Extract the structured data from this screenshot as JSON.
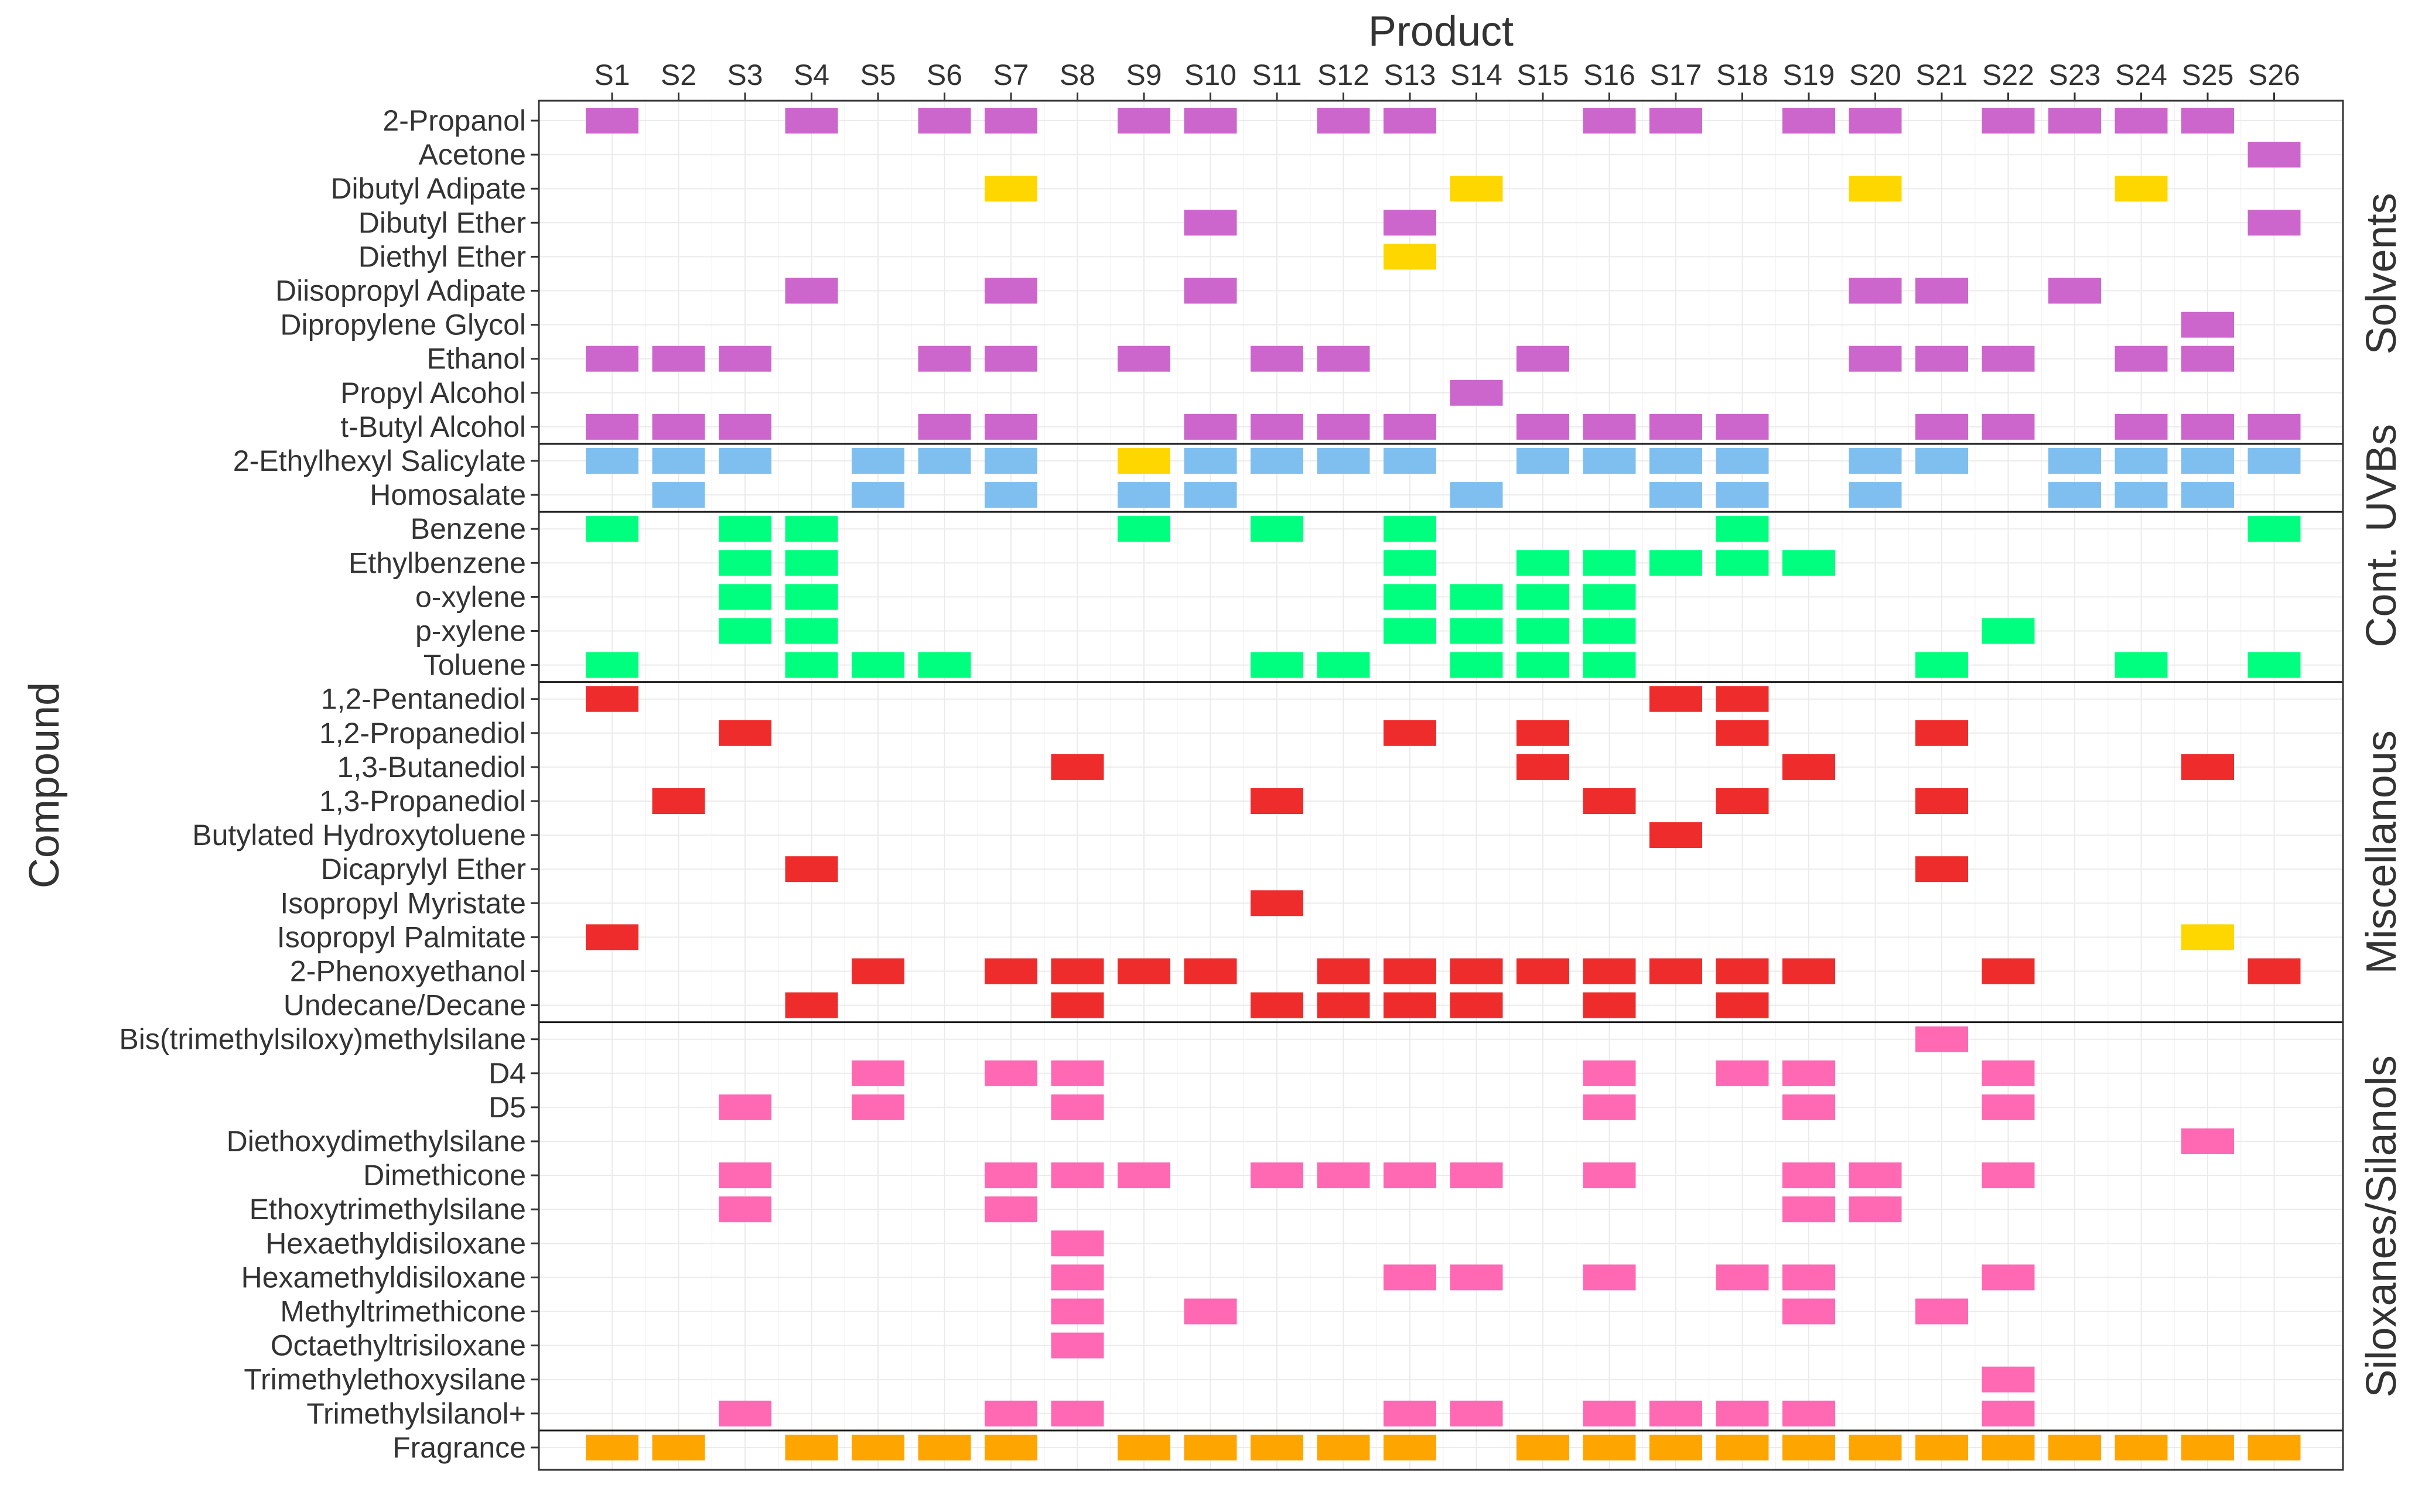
{
  "chart_data": {
    "type": "heatmap",
    "title": "",
    "xlabel": "Product",
    "ylabel": "Compound",
    "grid": true,
    "legend": "none",
    "products": [
      "S1",
      "S2",
      "S3",
      "S4",
      "S5",
      "S6",
      "S7",
      "S8",
      "S9",
      "S10",
      "S11",
      "S12",
      "S13",
      "S14",
      "S15",
      "S16",
      "S17",
      "S18",
      "S19",
      "S20",
      "S21",
      "S22",
      "S23",
      "S24",
      "S25",
      "S26"
    ],
    "compounds": [
      "2-Propanol",
      "Acetone",
      "Dibutyl Adipate",
      "Dibutyl Ether",
      "Diethyl Ether",
      "Diisopropyl Adipate",
      "Dipropylene Glycol",
      "Ethanol",
      "Propyl Alcohol",
      "t-Butyl Alcohol",
      "2-Ethylhexyl Salicylate",
      "Homosalate",
      "Benzene",
      "Ethylbenzene",
      "o-xylene",
      "p-xylene",
      "Toluene",
      "1,2-Pentanediol",
      "1,2-Propanediol",
      "1,3-Butanediol",
      "1,3-Propanediol",
      "Butylated Hydroxytoluene",
      "Dicaprylyl Ether",
      "Isopropyl Myristate",
      "Isopropyl Palmitate",
      "2-Phenoxyethanol",
      "Undecane/Decane",
      "Bis(trimethylsiloxy)methylsilane",
      "D4",
      "D5",
      "Diethoxydimethylsilane",
      "Dimethicone",
      "Ethoxytrimethylsilane",
      "Hexaethyldisiloxane",
      "Hexamethyldisiloxane",
      "Methyltrimethicone ",
      "Octaethyltrisiloxane",
      "Trimethylethoxysilane",
      "Trimethylsilanol+",
      "Fragrance"
    ],
    "panels": [
      {
        "label": "Solvents",
        "start": 0,
        "end": 9
      },
      {
        "label": "UVBs",
        "start": 10,
        "end": 11
      },
      {
        "label": "Cont.",
        "start": 12,
        "end": 16
      },
      {
        "label": "Miscellanous",
        "start": 17,
        "end": 26
      },
      {
        "label": "Siloxanes/Silanols",
        "start": 27,
        "end": 38
      },
      {
        "label": "",
        "start": 39,
        "end": 39
      }
    ],
    "colors": {
      "solvent": "#CC66CC",
      "uvb": "#7FBFEF",
      "contaminant": "#00FF7F",
      "misc": "#EE2C2C",
      "siloxane": "#FF69B4",
      "fragrance": "#FFA500",
      "alt": "#FFD700"
    },
    "cells": [
      {
        "compound": "2-Propanol",
        "products": [
          "S1",
          "S4",
          "S6",
          "S7",
          "S9",
          "S10",
          "S12",
          "S13",
          "S16",
          "S17",
          "S19",
          "S20",
          "S22",
          "S23",
          "S24",
          "S25"
        ],
        "color": "solvent"
      },
      {
        "compound": "Acetone",
        "products": [
          "S26"
        ],
        "color": "solvent"
      },
      {
        "compound": "Dibutyl Adipate",
        "products": [
          "S7",
          "S14",
          "S20",
          "S24"
        ],
        "color": "alt"
      },
      {
        "compound": "Dibutyl Ether",
        "products": [
          "S10",
          "S13",
          "S26"
        ],
        "color": "solvent"
      },
      {
        "compound": "Diethyl Ether",
        "products": [
          "S13"
        ],
        "color": "alt"
      },
      {
        "compound": "Diisopropyl Adipate",
        "products": [
          "S4",
          "S7",
          "S10",
          "S20",
          "S21",
          "S23"
        ],
        "color": "solvent"
      },
      {
        "compound": "Dipropylene Glycol",
        "products": [
          "S25"
        ],
        "color": "solvent"
      },
      {
        "compound": "Ethanol",
        "products": [
          "S1",
          "S2",
          "S3",
          "S6",
          "S7",
          "S9",
          "S11",
          "S12",
          "S15",
          "S20",
          "S21",
          "S22",
          "S24",
          "S25"
        ],
        "color": "solvent"
      },
      {
        "compound": "Propyl Alcohol",
        "products": [
          "S14"
        ],
        "color": "solvent"
      },
      {
        "compound": "t-Butyl Alcohol",
        "products": [
          "S1",
          "S2",
          "S3",
          "S6",
          "S7",
          "S10",
          "S11",
          "S12",
          "S13",
          "S15",
          "S16",
          "S17",
          "S18",
          "S21",
          "S22",
          "S24",
          "S25",
          "S26"
        ],
        "color": "solvent"
      },
      {
        "compound": "2-Ethylhexyl Salicylate",
        "products": [
          "S1",
          "S2",
          "S3",
          "S5",
          "S6",
          "S7",
          "S10",
          "S11",
          "S12",
          "S13",
          "S15",
          "S16",
          "S17",
          "S18",
          "S20",
          "S21",
          "S23",
          "S24",
          "S25",
          "S26"
        ],
        "color": "uvb"
      },
      {
        "compound": "2-Ethylhexyl Salicylate",
        "products": [
          "S9"
        ],
        "color": "alt"
      },
      {
        "compound": "Homosalate",
        "products": [
          "S2",
          "S5",
          "S7",
          "S9",
          "S10",
          "S14",
          "S17",
          "S18",
          "S20",
          "S23",
          "S24",
          "S25"
        ],
        "color": "uvb"
      },
      {
        "compound": "Benzene",
        "products": [
          "S1",
          "S3",
          "S4",
          "S9",
          "S11",
          "S13",
          "S18",
          "S26"
        ],
        "color": "contaminant"
      },
      {
        "compound": "Ethylbenzene",
        "products": [
          "S3",
          "S4",
          "S13",
          "S15",
          "S16",
          "S17",
          "S18",
          "S19"
        ],
        "color": "contaminant"
      },
      {
        "compound": "o-xylene",
        "products": [
          "S3",
          "S4",
          "S13",
          "S14",
          "S15",
          "S16"
        ],
        "color": "contaminant"
      },
      {
        "compound": "p-xylene",
        "products": [
          "S3",
          "S4",
          "S13",
          "S14",
          "S15",
          "S16",
          "S22"
        ],
        "color": "contaminant"
      },
      {
        "compound": "Toluene",
        "products": [
          "S1",
          "S4",
          "S5",
          "S6",
          "S11",
          "S12",
          "S14",
          "S15",
          "S16",
          "S21",
          "S24",
          "S26"
        ],
        "color": "contaminant"
      },
      {
        "compound": "1,2-Pentanediol",
        "products": [
          "S1",
          "S17",
          "S18"
        ],
        "color": "misc"
      },
      {
        "compound": "1,2-Propanediol",
        "products": [
          "S3",
          "S13",
          "S15",
          "S18",
          "S21"
        ],
        "color": "misc"
      },
      {
        "compound": "1,3-Butanediol",
        "products": [
          "S8",
          "S15",
          "S19",
          "S25"
        ],
        "color": "misc"
      },
      {
        "compound": "1,3-Propanediol",
        "products": [
          "S2",
          "S11",
          "S16",
          "S18",
          "S21"
        ],
        "color": "misc"
      },
      {
        "compound": "Butylated Hydroxytoluene",
        "products": [
          "S17"
        ],
        "color": "misc"
      },
      {
        "compound": "Dicaprylyl Ether",
        "products": [
          "S4",
          "S21"
        ],
        "color": "misc"
      },
      {
        "compound": "Isopropyl Myristate",
        "products": [
          "S11"
        ],
        "color": "misc"
      },
      {
        "compound": "Isopropyl Palmitate",
        "products": [
          "S1"
        ],
        "color": "misc"
      },
      {
        "compound": "Isopropyl Palmitate",
        "products": [
          "S25"
        ],
        "color": "alt"
      },
      {
        "compound": "2-Phenoxyethanol",
        "products": [
          "S5",
          "S7",
          "S8",
          "S9",
          "S10",
          "S12",
          "S13",
          "S14",
          "S15",
          "S16",
          "S17",
          "S18",
          "S19",
          "S22",
          "S26"
        ],
        "color": "misc"
      },
      {
        "compound": "Undecane/Decane",
        "products": [
          "S4",
          "S8",
          "S11",
          "S12",
          "S13",
          "S14",
          "S16",
          "S18"
        ],
        "color": "misc"
      },
      {
        "compound": "Bis(trimethylsiloxy)methylsilane",
        "products": [
          "S21"
        ],
        "color": "siloxane"
      },
      {
        "compound": "D4",
        "products": [
          "S5",
          "S7",
          "S8",
          "S16",
          "S18",
          "S19",
          "S22"
        ],
        "color": "siloxane"
      },
      {
        "compound": "D5",
        "products": [
          "S3",
          "S5",
          "S8",
          "S16",
          "S19",
          "S22"
        ],
        "color": "siloxane"
      },
      {
        "compound": "Diethoxydimethylsilane",
        "products": [
          "S25"
        ],
        "color": "siloxane"
      },
      {
        "compound": "Dimethicone",
        "products": [
          "S3",
          "S7",
          "S8",
          "S9",
          "S11",
          "S12",
          "S13",
          "S14",
          "S16",
          "S19",
          "S20",
          "S22"
        ],
        "color": "siloxane"
      },
      {
        "compound": "Ethoxytrimethylsilane",
        "products": [
          "S3",
          "S7",
          "S19",
          "S20"
        ],
        "color": "siloxane"
      },
      {
        "compound": "Hexaethyldisiloxane",
        "products": [
          "S8"
        ],
        "color": "siloxane"
      },
      {
        "compound": "Hexamethyldisiloxane",
        "products": [
          "S8",
          "S13",
          "S14",
          "S16",
          "S18",
          "S19",
          "S22"
        ],
        "color": "siloxane"
      },
      {
        "compound": "Methyltrimethicone ",
        "products": [
          "S8",
          "S10",
          "S19",
          "S21"
        ],
        "color": "siloxane"
      },
      {
        "compound": "Octaethyltrisiloxane",
        "products": [
          "S8"
        ],
        "color": "siloxane"
      },
      {
        "compound": "Trimethylethoxysilane",
        "products": [
          "S22"
        ],
        "color": "siloxane"
      },
      {
        "compound": "Trimethylsilanol+",
        "products": [
          "S3",
          "S7",
          "S8",
          "S13",
          "S14",
          "S16",
          "S17",
          "S18",
          "S19",
          "S22"
        ],
        "color": "siloxane"
      },
      {
        "compound": "Fragrance",
        "products": [
          "S1",
          "S2",
          "S4",
          "S5",
          "S6",
          "S7",
          "S9",
          "S10",
          "S11",
          "S12",
          "S13",
          "S15",
          "S16",
          "S17",
          "S18",
          "S19",
          "S20",
          "S21",
          "S22",
          "S23",
          "S24",
          "S25",
          "S26"
        ],
        "color": "fragrance"
      }
    ]
  }
}
